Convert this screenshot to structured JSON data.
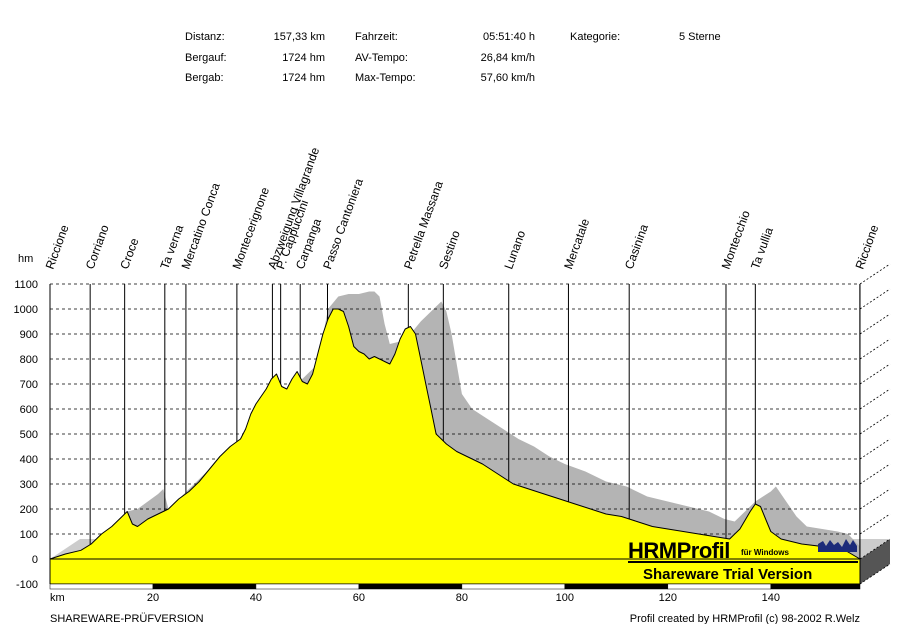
{
  "summary": {
    "col1": [
      {
        "label": "Distanz:",
        "value": "157,33 km"
      },
      {
        "label": "Bergauf:",
        "value": "1724 hm"
      },
      {
        "label": "Bergab:",
        "value": "1724 hm"
      }
    ],
    "col2": [
      {
        "label": "Fahrzeit:",
        "value": "05:51:40 h"
      },
      {
        "label": "AV-Tempo:",
        "value": "26,84 km/h"
      },
      {
        "label": "Max-Tempo:",
        "value": "57,60 km/h"
      }
    ],
    "col3": [
      {
        "label": "Kategorie:",
        "value": "5 Sterne"
      }
    ]
  },
  "footer": {
    "left": "SHAREWARE-PRÜFVERSION",
    "right": "Profil created by HRMProfil (c) 98-2002 R.Welz"
  },
  "logo": {
    "name": "HRMProfil",
    "sub": "für Windows",
    "trial": "Shareware Trial  Version"
  },
  "colors": {
    "profile_fill": "#ffff00",
    "shadow_fill": "#b4b4b4",
    "grid": "#000000",
    "floor_dark": "#555555",
    "floor_light": "#cccccc"
  },
  "chart_data": {
    "type": "area",
    "ylabel": "hm",
    "xlabel": "km",
    "xlim": [
      0,
      157.33
    ],
    "ylim": [
      -100,
      1100
    ],
    "yticks": [
      1100,
      1000,
      900,
      800,
      700,
      600,
      500,
      400,
      300,
      200,
      100,
      0,
      -100
    ],
    "xticks": [
      20,
      40,
      60,
      80,
      100,
      120,
      140
    ],
    "grid": true,
    "waypoints": [
      {
        "name": "Riccione",
        "km": 0
      },
      {
        "name": "Corriano",
        "km": 7.8
      },
      {
        "name": "Croce",
        "km": 14.5
      },
      {
        "name": "Ta verna",
        "km": 22.3
      },
      {
        "name": "Mercatino Conca",
        "km": 26.4
      },
      {
        "name": "Montecerignone",
        "km": 36.3
      },
      {
        "name": "Abzweigung Villagrande",
        "km": 43.2
      },
      {
        "name": "P. Cappuccini",
        "km": 44.8
      },
      {
        "name": "Carpanga",
        "km": 48.6
      },
      {
        "name": "Passo Cantoniera",
        "km": 53.9
      },
      {
        "name": "Petrella Massana",
        "km": 69.6
      },
      {
        "name": "Sestino",
        "km": 76.4
      },
      {
        "name": "Lunano",
        "km": 89.1
      },
      {
        "name": "Mercatale",
        "km": 100.7
      },
      {
        "name": "Casinina",
        "km": 112.5
      },
      {
        "name": "Montecchio",
        "km": 131.3
      },
      {
        "name": "Ta vullia",
        "km": 137.0
      },
      {
        "name": "Riccione",
        "km": 157.3
      }
    ],
    "profile": [
      [
        0,
        0
      ],
      [
        3,
        20
      ],
      [
        6,
        35
      ],
      [
        8,
        60
      ],
      [
        10,
        100
      ],
      [
        12,
        130
      ],
      [
        14,
        170
      ],
      [
        15,
        190
      ],
      [
        16,
        140
      ],
      [
        17,
        130
      ],
      [
        19,
        160
      ],
      [
        21,
        180
      ],
      [
        23,
        200
      ],
      [
        25,
        240
      ],
      [
        27,
        270
      ],
      [
        29,
        310
      ],
      [
        31,
        360
      ],
      [
        33,
        410
      ],
      [
        35,
        450
      ],
      [
        37,
        480
      ],
      [
        38,
        520
      ],
      [
        39,
        580
      ],
      [
        40,
        620
      ],
      [
        42,
        680
      ],
      [
        43,
        720
      ],
      [
        44,
        740
      ],
      [
        45,
        690
      ],
      [
        46,
        680
      ],
      [
        47,
        720
      ],
      [
        48,
        750
      ],
      [
        49,
        710
      ],
      [
        50,
        700
      ],
      [
        51,
        740
      ],
      [
        52,
        820
      ],
      [
        53,
        900
      ],
      [
        54,
        960
      ],
      [
        55,
        1000
      ],
      [
        56,
        1000
      ],
      [
        57,
        990
      ],
      [
        58,
        930
      ],
      [
        59,
        850
      ],
      [
        60,
        830
      ],
      [
        61,
        820
      ],
      [
        62,
        800
      ],
      [
        63,
        810
      ],
      [
        64,
        800
      ],
      [
        65,
        790
      ],
      [
        66,
        780
      ],
      [
        67,
        820
      ],
      [
        68,
        880
      ],
      [
        69,
        920
      ],
      [
        70,
        930
      ],
      [
        71,
        900
      ],
      [
        72,
        800
      ],
      [
        73,
        700
      ],
      [
        74,
        600
      ],
      [
        75,
        500
      ],
      [
        76,
        480
      ],
      [
        77,
        460
      ],
      [
        79,
        430
      ],
      [
        81,
        410
      ],
      [
        84,
        380
      ],
      [
        87,
        340
      ],
      [
        90,
        300
      ],
      [
        93,
        280
      ],
      [
        96,
        260
      ],
      [
        99,
        240
      ],
      [
        102,
        220
      ],
      [
        105,
        200
      ],
      [
        108,
        180
      ],
      [
        111,
        170
      ],
      [
        114,
        150
      ],
      [
        117,
        130
      ],
      [
        120,
        120
      ],
      [
        123,
        110
      ],
      [
        126,
        100
      ],
      [
        129,
        90
      ],
      [
        132,
        80
      ],
      [
        134,
        120
      ],
      [
        136,
        190
      ],
      [
        137,
        220
      ],
      [
        138,
        210
      ],
      [
        139,
        160
      ],
      [
        140,
        110
      ],
      [
        142,
        80
      ],
      [
        146,
        60
      ],
      [
        150,
        50
      ],
      [
        154,
        40
      ],
      [
        157.33,
        0
      ]
    ],
    "shadow": [
      [
        15,
        190
      ],
      [
        17,
        200
      ],
      [
        19,
        230
      ],
      [
        21,
        260
      ],
      [
        22,
        280
      ],
      [
        23,
        200
      ],
      [
        49,
        720
      ],
      [
        52,
        780
      ],
      [
        54,
        1000
      ],
      [
        56,
        1050
      ],
      [
        58,
        1060
      ],
      [
        60,
        1060
      ],
      [
        62,
        1070
      ],
      [
        63,
        1070
      ],
      [
        64,
        1050
      ],
      [
        65,
        940
      ],
      [
        66,
        860
      ],
      [
        68,
        870
      ],
      [
        70,
        900
      ],
      [
        72,
        950
      ],
      [
        74,
        990
      ],
      [
        75,
        1010
      ],
      [
        76,
        1030
      ],
      [
        77,
        990
      ],
      [
        78,
        900
      ],
      [
        79,
        780
      ],
      [
        80,
        660
      ],
      [
        82,
        600
      ],
      [
        85,
        560
      ],
      [
        88,
        520
      ],
      [
        91,
        480
      ],
      [
        94,
        450
      ],
      [
        97,
        410
      ],
      [
        100,
        380
      ],
      [
        104,
        350
      ],
      [
        108,
        310
      ],
      [
        112,
        290
      ],
      [
        116,
        250
      ],
      [
        120,
        230
      ],
      [
        124,
        210
      ],
      [
        128,
        190
      ],
      [
        131,
        160
      ],
      [
        133,
        150
      ],
      [
        135,
        190
      ],
      [
        137,
        230
      ],
      [
        140,
        270
      ],
      [
        141,
        290
      ],
      [
        143,
        230
      ],
      [
        145,
        170
      ],
      [
        147,
        130
      ],
      [
        150,
        120
      ],
      [
        153,
        110
      ],
      [
        155,
        100
      ],
      [
        157.33,
        50
      ]
    ]
  }
}
